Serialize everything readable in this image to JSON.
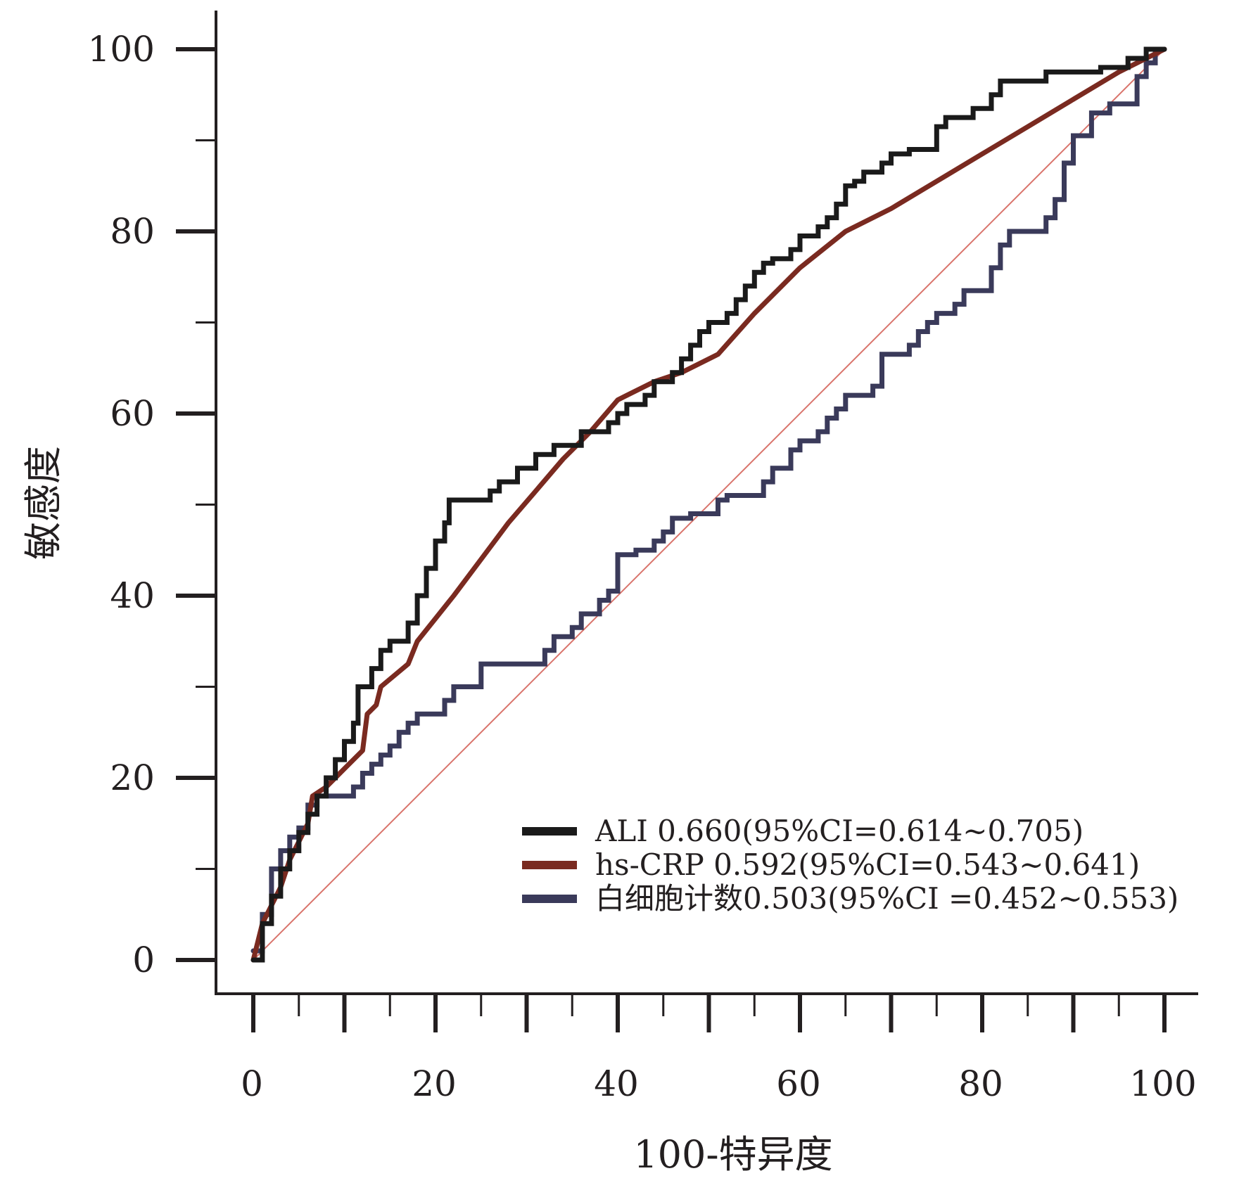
{
  "chart_data": {
    "type": "line",
    "title": "",
    "xlabel": "100-特异度",
    "ylabel": "敏感度",
    "xlim": [
      0,
      100
    ],
    "ylim": [
      0,
      100
    ],
    "x_ticks": [
      "0",
      "20",
      "40",
      "60",
      "80",
      "100"
    ],
    "y_ticks": [
      "0",
      "20",
      "40",
      "60",
      "80",
      "100"
    ],
    "grid": false,
    "legend_position": "bottom-right",
    "reference_line": {
      "color": "#d9736b",
      "points": [
        [
          0,
          0
        ],
        [
          100,
          100
        ]
      ]
    },
    "series": [
      {
        "name": "ALI 0.660(95%CI=0.614~0.705)",
        "color": "#1a1a1a",
        "step": true,
        "points": [
          [
            0,
            0
          ],
          [
            1,
            0
          ],
          [
            1,
            4
          ],
          [
            2,
            4
          ],
          [
            2,
            7
          ],
          [
            3,
            7
          ],
          [
            3,
            10
          ],
          [
            4,
            10
          ],
          [
            4,
            12
          ],
          [
            5,
            12
          ],
          [
            5,
            14
          ],
          [
            6,
            14
          ],
          [
            6,
            16
          ],
          [
            7,
            16
          ],
          [
            7,
            18
          ],
          [
            8,
            18
          ],
          [
            8,
            20
          ],
          [
            9,
            20
          ],
          [
            9,
            22
          ],
          [
            10,
            22
          ],
          [
            10,
            24
          ],
          [
            11,
            24
          ],
          [
            11,
            26
          ],
          [
            11.5,
            26
          ],
          [
            11.5,
            30
          ],
          [
            13,
            30
          ],
          [
            13,
            32
          ],
          [
            14,
            32
          ],
          [
            14,
            34
          ],
          [
            15,
            34
          ],
          [
            15,
            35
          ],
          [
            17,
            35
          ],
          [
            17,
            37
          ],
          [
            18,
            37
          ],
          [
            18,
            40
          ],
          [
            19,
            40
          ],
          [
            19,
            43
          ],
          [
            20,
            43
          ],
          [
            20,
            46
          ],
          [
            21,
            46
          ],
          [
            21,
            48
          ],
          [
            21.5,
            48
          ],
          [
            21.5,
            50.5
          ],
          [
            26,
            50.5
          ],
          [
            26,
            51.5
          ],
          [
            27,
            51.5
          ],
          [
            27,
            52.5
          ],
          [
            29,
            52.5
          ],
          [
            29,
            54
          ],
          [
            31,
            54
          ],
          [
            31,
            55.5
          ],
          [
            33,
            55.5
          ],
          [
            33,
            56.5
          ],
          [
            36,
            56.5
          ],
          [
            36,
            58
          ],
          [
            39,
            58
          ],
          [
            39,
            59
          ],
          [
            40,
            59
          ],
          [
            40,
            60
          ],
          [
            41,
            60
          ],
          [
            41,
            61
          ],
          [
            43,
            61
          ],
          [
            43,
            62
          ],
          [
            44,
            62
          ],
          [
            44,
            63.5
          ],
          [
            46,
            63.5
          ],
          [
            46,
            64.5
          ],
          [
            47,
            64.5
          ],
          [
            47,
            66
          ],
          [
            48,
            66
          ],
          [
            48,
            67.5
          ],
          [
            49,
            67.5
          ],
          [
            49,
            69
          ],
          [
            50,
            69
          ],
          [
            50,
            70
          ],
          [
            52,
            70
          ],
          [
            52,
            71
          ],
          [
            53,
            71
          ],
          [
            53,
            72.5
          ],
          [
            54,
            72.5
          ],
          [
            54,
            74
          ],
          [
            55,
            74
          ],
          [
            55,
            75.5
          ],
          [
            56,
            75.5
          ],
          [
            56,
            76.5
          ],
          [
            57,
            76.5
          ],
          [
            57,
            77
          ],
          [
            59,
            77
          ],
          [
            59,
            78
          ],
          [
            60,
            78
          ],
          [
            60,
            79.5
          ],
          [
            62,
            79.5
          ],
          [
            62,
            80.5
          ],
          [
            63,
            80.5
          ],
          [
            63,
            81.5
          ],
          [
            64,
            81.5
          ],
          [
            64,
            83
          ],
          [
            65,
            83
          ],
          [
            65,
            85
          ],
          [
            66,
            85
          ],
          [
            66,
            85.5
          ],
          [
            67,
            85.5
          ],
          [
            67,
            86.5
          ],
          [
            69,
            86.5
          ],
          [
            69,
            87.5
          ],
          [
            70,
            87.5
          ],
          [
            70,
            88.5
          ],
          [
            72,
            88.5
          ],
          [
            72,
            89
          ],
          [
            75,
            89
          ],
          [
            75,
            91.5
          ],
          [
            76,
            91.5
          ],
          [
            76,
            92.5
          ],
          [
            79,
            92.5
          ],
          [
            79,
            93.5
          ],
          [
            81,
            93.5
          ],
          [
            81,
            95
          ],
          [
            82,
            95
          ],
          [
            82,
            96.5
          ],
          [
            87,
            96.5
          ],
          [
            87,
            97.5
          ],
          [
            93,
            97.5
          ],
          [
            93,
            98
          ],
          [
            96,
            98
          ],
          [
            96,
            99
          ],
          [
            98,
            99
          ],
          [
            98,
            100
          ],
          [
            100,
            100
          ]
        ]
      },
      {
        "name": "hs-CRP 0.592(95%CI=0.543~0.641)",
        "color": "#7a2a20",
        "step": false,
        "points": [
          [
            0,
            0
          ],
          [
            1,
            4
          ],
          [
            2,
            6
          ],
          [
            3,
            8
          ],
          [
            4,
            11
          ],
          [
            5,
            13
          ],
          [
            6,
            15
          ],
          [
            6.5,
            18
          ],
          [
            8,
            19
          ],
          [
            10,
            21
          ],
          [
            12,
            23
          ],
          [
            12.5,
            27
          ],
          [
            13.5,
            28
          ],
          [
            14,
            30
          ],
          [
            17,
            32.5
          ],
          [
            18,
            35
          ],
          [
            20,
            37.5
          ],
          [
            22,
            40
          ],
          [
            25,
            44
          ],
          [
            28,
            48
          ],
          [
            31,
            51.5
          ],
          [
            34,
            55
          ],
          [
            37,
            58
          ],
          [
            40,
            61.5
          ],
          [
            44,
            63.5
          ],
          [
            47,
            64.5
          ],
          [
            51,
            66.5
          ],
          [
            55,
            71
          ],
          [
            60,
            76
          ],
          [
            65,
            80
          ],
          [
            70,
            82.5
          ],
          [
            75,
            85.5
          ],
          [
            80,
            88.5
          ],
          [
            85,
            91.5
          ],
          [
            90,
            94.5
          ],
          [
            95,
            97.5
          ],
          [
            100,
            100
          ]
        ]
      },
      {
        "name": "白细胞计数0.503(95%CI =0.452~0.553)",
        "color": "#3a3a5a",
        "step": true,
        "points": [
          [
            0,
            1
          ],
          [
            1,
            1
          ],
          [
            1,
            5
          ],
          [
            2,
            5
          ],
          [
            2,
            10
          ],
          [
            3,
            10
          ],
          [
            3,
            12
          ],
          [
            4,
            12
          ],
          [
            4,
            13.5
          ],
          [
            5,
            13.5
          ],
          [
            5,
            14.5
          ],
          [
            6,
            14.5
          ],
          [
            6,
            17
          ],
          [
            7,
            17
          ],
          [
            7,
            18
          ],
          [
            11,
            18
          ],
          [
            11,
            19
          ],
          [
            12,
            19
          ],
          [
            12,
            20.5
          ],
          [
            13,
            20.5
          ],
          [
            13,
            21.5
          ],
          [
            14,
            21.5
          ],
          [
            14,
            22.5
          ],
          [
            15,
            22.5
          ],
          [
            15,
            23.5
          ],
          [
            16,
            23.5
          ],
          [
            16,
            25
          ],
          [
            17,
            25
          ],
          [
            17,
            26
          ],
          [
            18,
            26
          ],
          [
            18,
            27
          ],
          [
            21,
            27
          ],
          [
            21,
            28.5
          ],
          [
            22,
            28.5
          ],
          [
            22,
            30
          ],
          [
            25,
            30
          ],
          [
            25,
            32.5
          ],
          [
            32,
            32.5
          ],
          [
            32,
            34
          ],
          [
            33,
            34
          ],
          [
            33,
            35.5
          ],
          [
            35,
            35.5
          ],
          [
            35,
            36.5
          ],
          [
            36,
            36.5
          ],
          [
            36,
            38
          ],
          [
            38,
            38
          ],
          [
            38,
            39.5
          ],
          [
            39,
            39.5
          ],
          [
            39,
            40.5
          ],
          [
            40,
            40.5
          ],
          [
            40,
            44.5
          ],
          [
            42,
            44.5
          ],
          [
            42,
            45
          ],
          [
            44,
            45
          ],
          [
            44,
            46
          ],
          [
            45,
            46
          ],
          [
            45,
            47
          ],
          [
            46,
            47
          ],
          [
            46,
            48.5
          ],
          [
            48,
            48.5
          ],
          [
            48,
            49
          ],
          [
            51,
            49
          ],
          [
            51,
            50.5
          ],
          [
            52,
            50.5
          ],
          [
            52,
            51
          ],
          [
            56,
            51
          ],
          [
            56,
            52.5
          ],
          [
            57,
            52.5
          ],
          [
            57,
            54
          ],
          [
            59,
            54
          ],
          [
            59,
            56
          ],
          [
            60,
            56
          ],
          [
            60,
            57
          ],
          [
            62,
            57
          ],
          [
            62,
            58
          ],
          [
            63,
            58
          ],
          [
            63,
            59.5
          ],
          [
            64,
            59.5
          ],
          [
            64,
            60.5
          ],
          [
            65,
            60.5
          ],
          [
            65,
            62
          ],
          [
            68,
            62
          ],
          [
            68,
            63
          ],
          [
            69,
            63
          ],
          [
            69,
            66.5
          ],
          [
            72,
            66.5
          ],
          [
            72,
            67.5
          ],
          [
            73,
            67.5
          ],
          [
            73,
            69
          ],
          [
            74,
            69
          ],
          [
            74,
            70
          ],
          [
            75,
            70
          ],
          [
            75,
            71
          ],
          [
            77,
            71
          ],
          [
            77,
            72
          ],
          [
            78,
            72
          ],
          [
            78,
            73.5
          ],
          [
            81,
            73.5
          ],
          [
            81,
            76
          ],
          [
            82,
            76
          ],
          [
            82,
            78.5
          ],
          [
            83,
            78.5
          ],
          [
            83,
            80
          ],
          [
            87,
            80
          ],
          [
            87,
            81.5
          ],
          [
            88,
            81.5
          ],
          [
            88,
            83.5
          ],
          [
            89,
            83.5
          ],
          [
            89,
            87.5
          ],
          [
            90,
            87.5
          ],
          [
            90,
            90.5
          ],
          [
            92,
            90.5
          ],
          [
            92,
            93
          ],
          [
            94,
            93
          ],
          [
            94,
            94
          ],
          [
            97,
            94
          ],
          [
            97,
            97
          ],
          [
            98,
            97
          ],
          [
            98,
            98.5
          ],
          [
            99,
            98.5
          ],
          [
            99,
            100
          ],
          [
            100,
            100
          ]
        ]
      }
    ]
  }
}
